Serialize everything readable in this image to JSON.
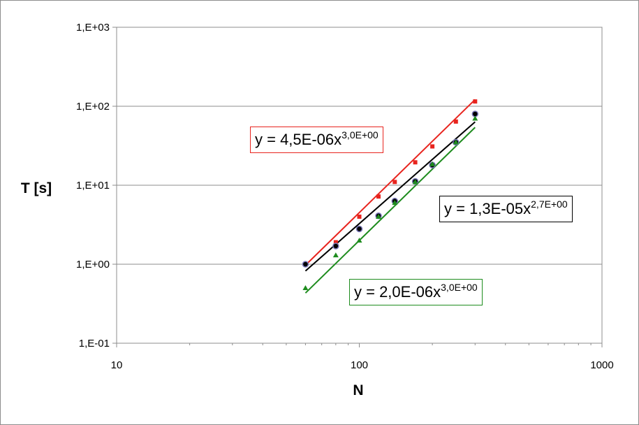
{
  "chart_data": {
    "type": "scatter",
    "title": "",
    "xlabel": "N",
    "ylabel": "T [s]",
    "xscale": "log",
    "yscale": "log",
    "xlim": [
      10,
      1000
    ],
    "ylim": [
      0.1,
      1000
    ],
    "x_ticks": [
      "10",
      "100",
      "1000"
    ],
    "y_ticks": [
      "1,E-01",
      "1,E+00",
      "1,E+01",
      "1,E+02",
      "1,E+03"
    ],
    "grid": "horizontal major",
    "legend": "none",
    "series": [
      {
        "color": "#e8241e",
        "marker": "square",
        "x": [
          60,
          80,
          100,
          120,
          140,
          170,
          200,
          250,
          300
        ],
        "y": [
          1.0,
          1.9,
          4.0,
          7.2,
          11.0,
          19.5,
          31.0,
          64.0,
          115.0
        ],
        "trendline": {
          "type": "power",
          "a": 4.5e-06,
          "b": 3.0,
          "label_text": "y = 4,5E-06x",
          "label_exp": "3,0E+00",
          "box_color": "#e8241e"
        }
      },
      {
        "color": "#000000",
        "marker": "circle",
        "x": [
          60,
          80,
          100,
          120,
          140,
          170,
          200,
          250,
          300
        ],
        "y": [
          1.0,
          1.7,
          2.8,
          4.1,
          6.3,
          11.2,
          18.0,
          35.0,
          80.0
        ],
        "trendline": {
          "type": "power",
          "a": 1.3e-05,
          "b": 2.7,
          "label_text": "y = 1,3E-05x",
          "label_exp": "2,7E+00",
          "box_color": "#000000"
        }
      },
      {
        "color": "#1e8c1e",
        "marker": "triangle",
        "x": [
          60,
          80,
          100,
          120,
          140,
          170,
          200,
          250,
          300
        ],
        "y": [
          0.5,
          1.3,
          2.0,
          4.0,
          6.0,
          11.0,
          18.5,
          35.0,
          70.0
        ],
        "trendline": {
          "type": "power",
          "a": 2e-06,
          "b": 3.0,
          "label_text": "y = 2,0E-06x",
          "label_exp": "3,0E+00",
          "box_color": "#1e8c1e"
        }
      }
    ]
  }
}
